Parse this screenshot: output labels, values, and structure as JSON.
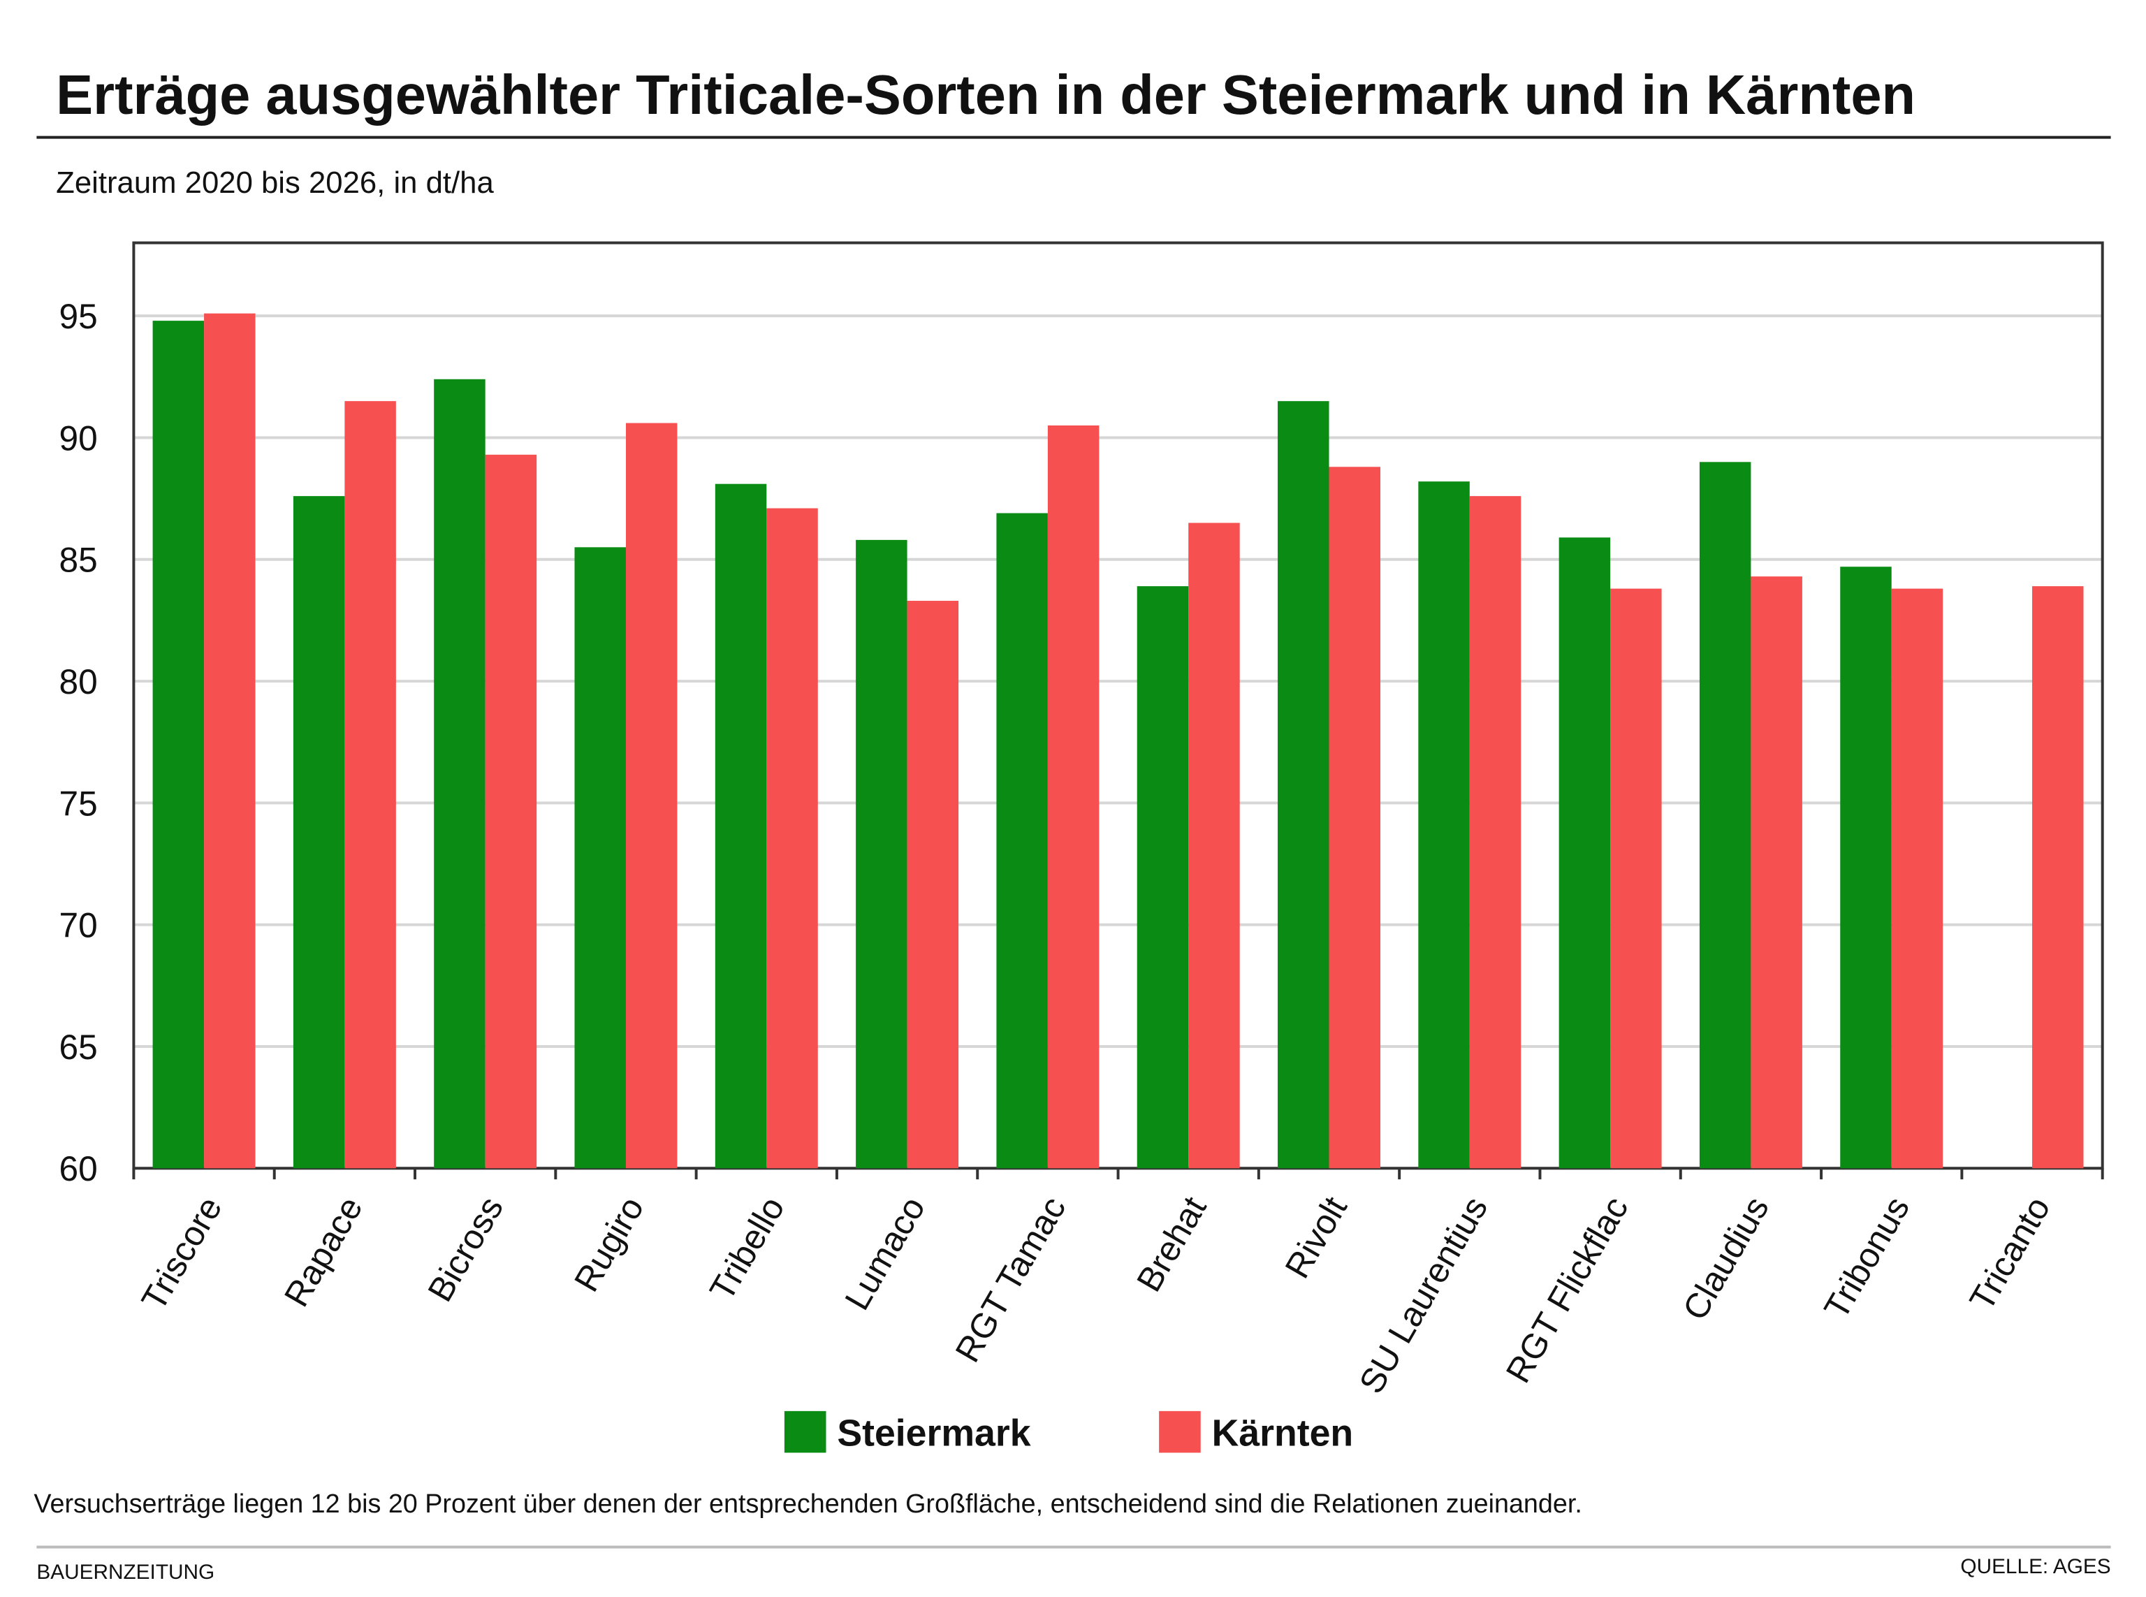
{
  "chart_data": {
    "type": "bar",
    "title": "Erträge ausgewählter Triticale-Sorten in der Steiermark und in Kärnten",
    "subtitle": "Zeitraum 2020 bis 2026, in dt/ha",
    "note": "Versuchserträge liegen 12 bis 20 Prozent über denen der entsprechenden Großfläche, entscheidend sind die Relationen zueinander.",
    "credit": "BAUERNZEITUNG",
    "source": "QUELLE: AGES",
    "categories": [
      "Triscore",
      "Rapace",
      "Bicross",
      "Rugiro",
      "Tribello",
      "Lumaco",
      "RGT Tamac",
      "Brehat",
      "Rivolt",
      "SU Laurentius",
      "RGT Flickflac",
      "Claudius",
      "Tribonus",
      "Tricanto"
    ],
    "series": [
      {
        "name": "Steiermark",
        "color": "#0a8c14",
        "values": [
          94.8,
          87.6,
          92.4,
          85.5,
          88.1,
          85.8,
          86.9,
          83.9,
          91.5,
          88.2,
          85.9,
          89.0,
          84.7,
          null
        ]
      },
      {
        "name": "Kärnten",
        "color": "#f65050",
        "values": [
          95.1,
          91.5,
          89.3,
          90.6,
          87.1,
          83.3,
          90.5,
          86.5,
          88.8,
          87.6,
          83.8,
          84.3,
          83.8,
          83.9
        ]
      }
    ],
    "ylim": [
      60,
      98
    ],
    "yticks": [
      60,
      65,
      70,
      75,
      80,
      85,
      90,
      95
    ],
    "grid": true
  }
}
